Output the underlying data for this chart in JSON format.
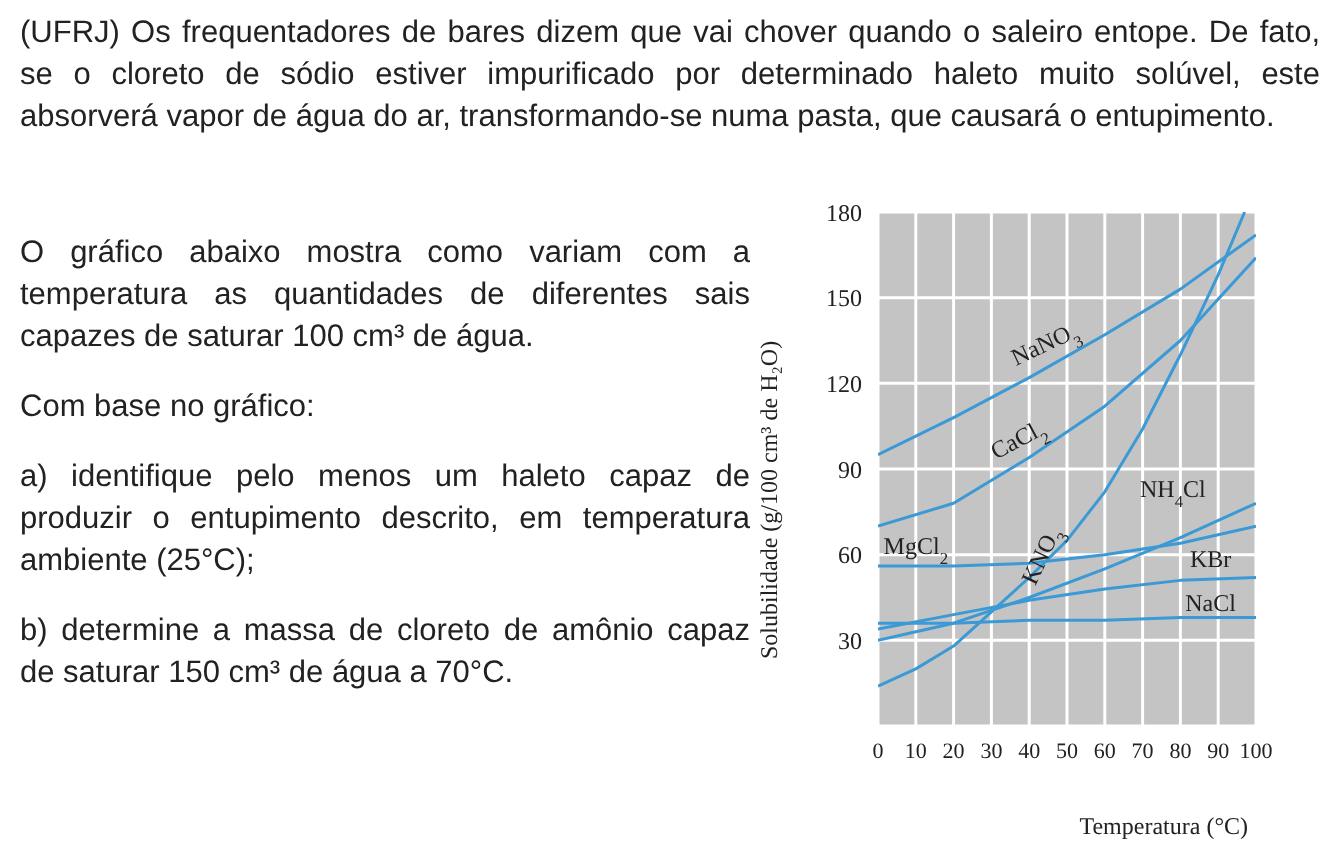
{
  "chart_data": {
    "type": "line",
    "title": "(UFRJ) Os frequentadores de bares dizem que vai chover quando o saleiro entope. De fato, se o cloreto de sódio estiver impurificado por determinado haleto muito solúvel, este absorverá vapor de água do ar, transformando-se numa pasta, que causará o entupimento.",
    "annotations": [
      "O gráfico abaixo mostra como variam com a temperatura as quantidades de diferentes sais capazes de saturar 100 cm³ de água.",
      "Com base no gráfico:",
      "a) identifique pelo menos um haleto capaz de produzir o entupimento descrito, em temperatura ambiente (25°C);",
      "b) determine a massa de cloreto de amônio capaz de saturar 150 cm³ de água a 70°C."
    ],
    "xlabel": "Temperatura (°C)",
    "ylabel": "Solubilidade (g/100 cm³ de H₂O)",
    "xlim": [
      0,
      100
    ],
    "xticks": [
      0,
      10,
      20,
      30,
      40,
      50,
      60,
      70,
      80,
      90,
      100
    ],
    "ylim": [
      0,
      180
    ],
    "yticks": [
      30,
      60,
      90,
      120,
      150,
      180
    ],
    "grid": true,
    "marker": "none",
    "line_style": "solid",
    "series": [
      {
        "name": "NaNO$_{3}$",
        "color": "#3b9ad6",
        "x": [
          0,
          20,
          40,
          60,
          80,
          100
        ],
        "values": [
          95,
          108,
          122,
          137,
          153,
          172
        ]
      },
      {
        "name": "CaCl$_{2}$",
        "color": "#3b9ad6",
        "x": [
          0,
          20,
          40,
          60,
          80,
          100
        ],
        "values": [
          70,
          78,
          94,
          112,
          135,
          164
        ]
      },
      {
        "name": "KNO$_{3}$",
        "color": "#3b9ad6",
        "x": [
          0,
          10,
          20,
          30,
          40,
          50,
          60,
          70,
          80,
          90,
          97
        ],
        "values": [
          14,
          20,
          28,
          40,
          52,
          65,
          82,
          104,
          130,
          158,
          180
        ]
      },
      {
        "name": "MgCl$_{2}$",
        "color": "#3b9ad6",
        "x": [
          0,
          20,
          40,
          60,
          80,
          100
        ],
        "values": [
          56,
          56,
          57,
          60,
          64,
          70
        ]
      },
      {
        "name": "NH$_{4}$Cl",
        "color": "#3b9ad6",
        "x": [
          0,
          20,
          40,
          60,
          80,
          100
        ],
        "values": [
          30,
          36,
          45,
          55,
          66,
          78
        ]
      },
      {
        "name": "KBr",
        "color": "#3b9ad6",
        "x": [
          0,
          20,
          40,
          60,
          80,
          100
        ],
        "values": [
          34,
          39,
          44,
          48,
          51,
          52
        ]
      },
      {
        "name": "NaCl",
        "color": "#3b9ad6",
        "x": [
          0,
          20,
          40,
          60,
          80,
          100
        ],
        "values": [
          36,
          36,
          37,
          37,
          38,
          38
        ]
      }
    ]
  }
}
